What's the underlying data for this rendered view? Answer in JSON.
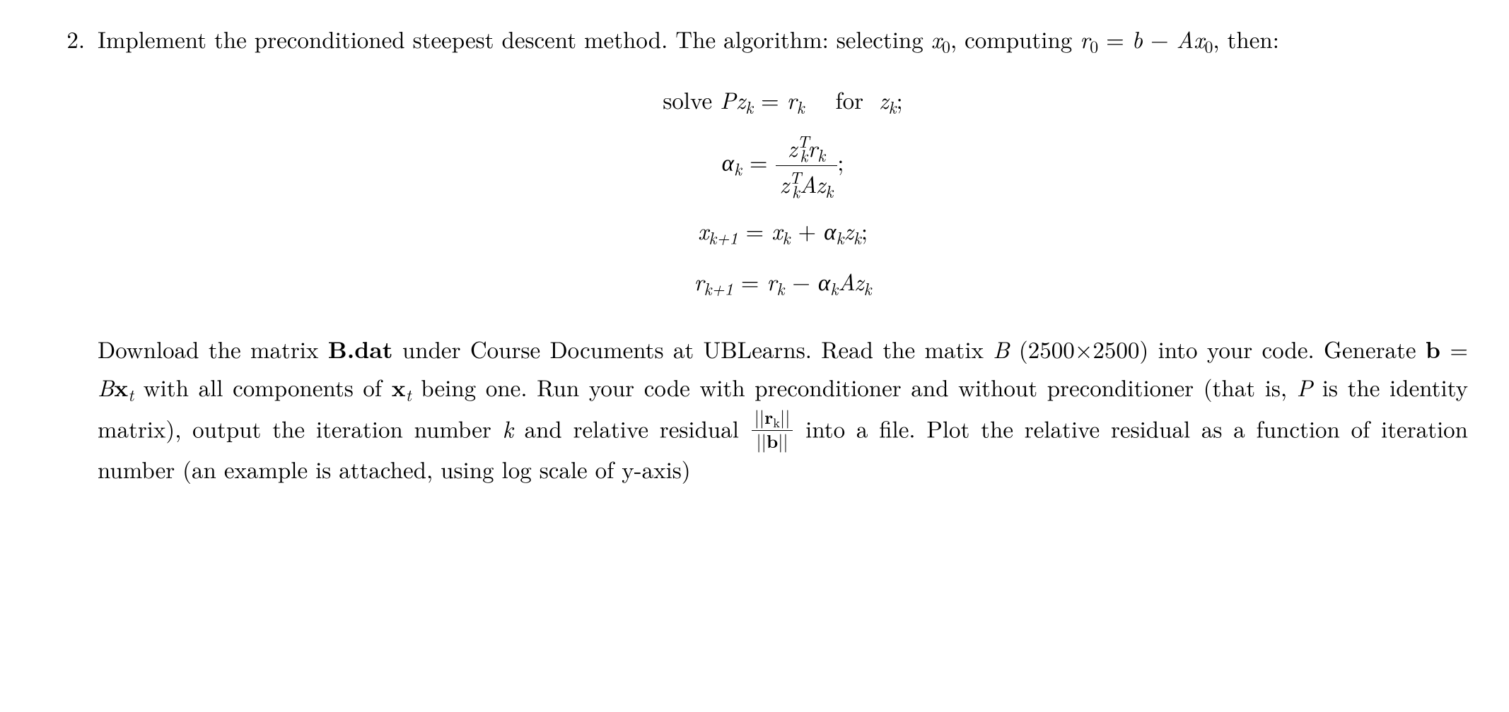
{
  "item_number": "2.",
  "para1": {
    "t1": "Implement the preconditioned steepest descent method. The algorithm: selecting ",
    "x0_var": "x",
    "x0_sub": "0",
    "t2": ", computing ",
    "r0_var": "r",
    "r0_sub": "0",
    "eq1": " = ",
    "b_var": "b",
    "minus": " − ",
    "A_var": "A",
    "t3": ", then:"
  },
  "math": {
    "line1": {
      "solve": "solve  ",
      "P": "P",
      "z": "z",
      "k": "k",
      "eq": " = ",
      "r": "r",
      "for": "    for  ",
      "semi": ";"
    },
    "line2": {
      "alpha": "α",
      "k": "k",
      "eq": " = ",
      "z": "z",
      "T": "T",
      "r": "r",
      "A": "A",
      "semi": ";"
    },
    "line3": {
      "x": "x",
      "kp1": "k+1",
      "eq": " = ",
      "k": "k",
      "plus": " + ",
      "alpha": "α",
      "z": "z",
      "semi": ";"
    },
    "line4": {
      "r": "r",
      "kp1": "k+1",
      "eq": " = ",
      "k": "k",
      "minus": " − ",
      "alpha": "α",
      "A": "A",
      "z": "z"
    }
  },
  "para2": {
    "t1": "Download the matrix ",
    "Bdat": "B.dat",
    "t2": " under Course Documents at UBLearns.  Read the matix ",
    "B": "B",
    "dims": " (2500×2500) into your code.  Generate ",
    "bvec": "b",
    "eq": " = ",
    "Bx": "B",
    "x": "x",
    "tsub": "t",
    "t3": " with all components of ",
    "t4": " being one.  Run your code with preconditioner and without preconditioner (that is, ",
    "P": "P",
    "t5": " is the identity matrix), output the iteration number ",
    "k": "k",
    "t6": " and relative residual ",
    "rk_bar": "||",
    "rk_r": "r",
    "rk_k": "k",
    "b_bar": "||",
    "b_b": "b",
    "t7": " into a file.  Plot the relative residual as a function of iteration number (an example is attached, using log scale of y-axis)"
  }
}
